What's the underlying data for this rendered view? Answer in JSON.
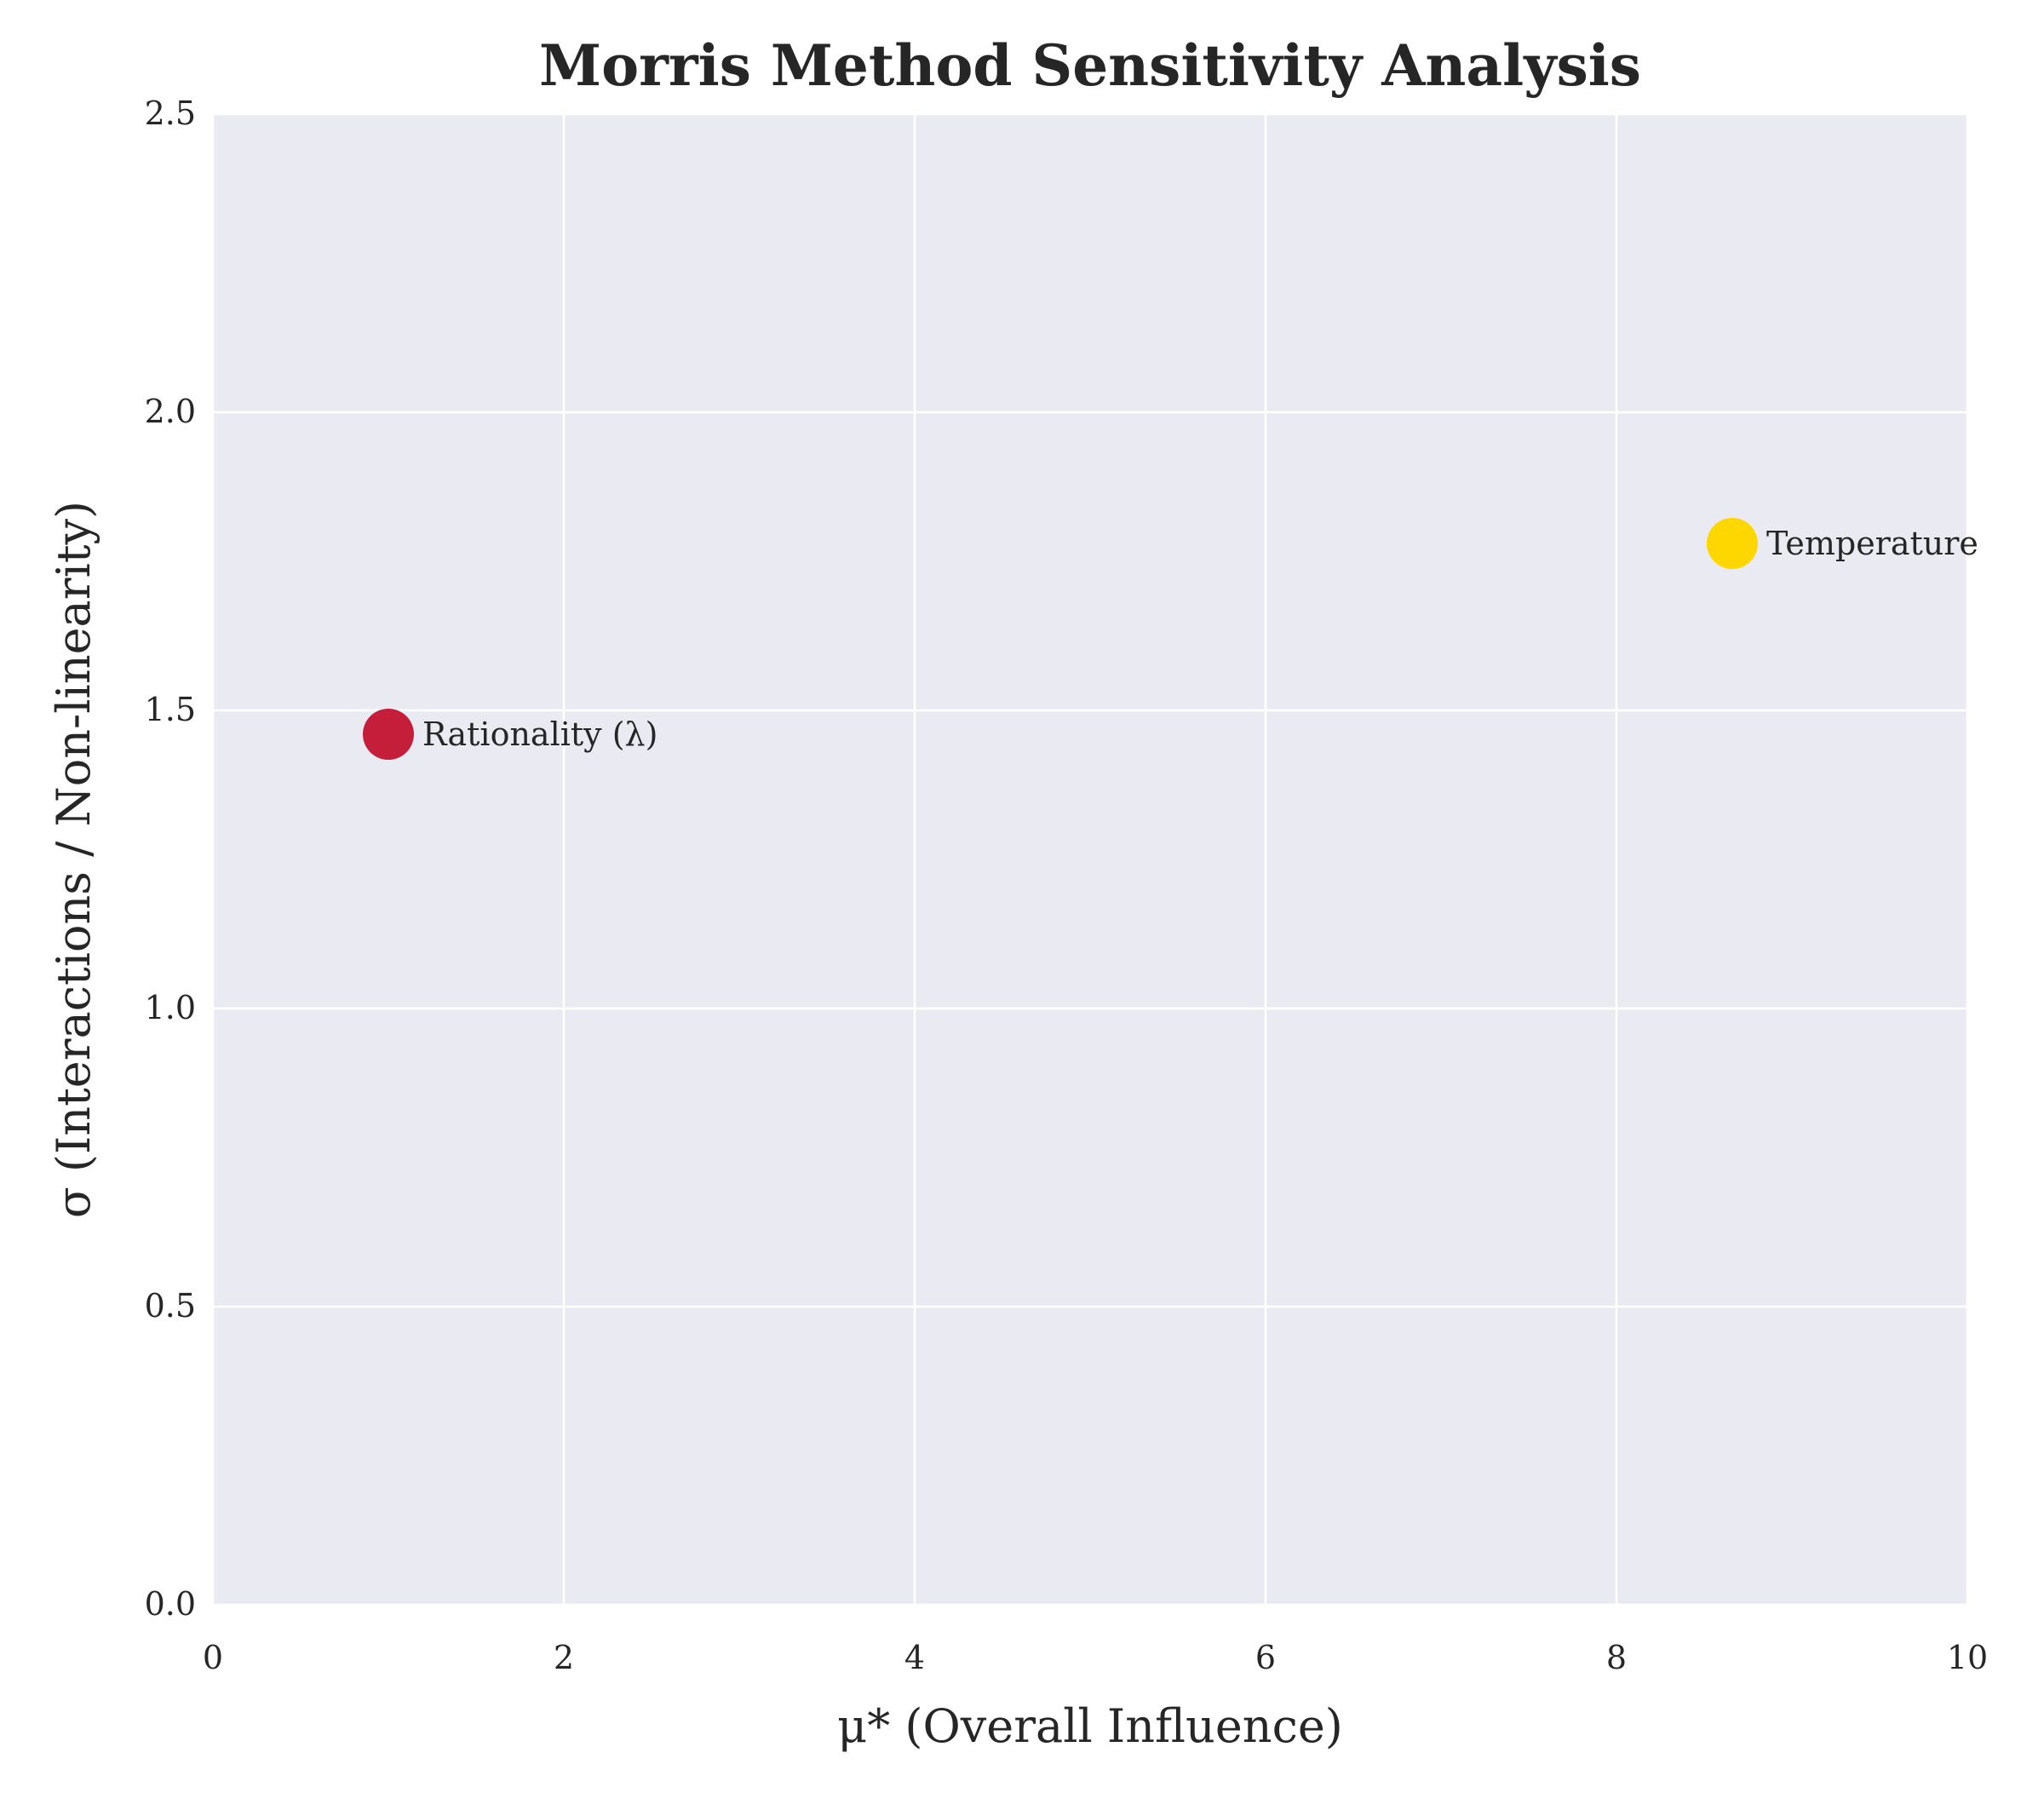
{
  "chart_data": {
    "type": "scatter",
    "title": "Morris Method Sensitivity Analysis",
    "xlabel": "μ* (Overall Influence)",
    "ylabel": "σ (Interactions / Non-linearity)",
    "xlim": [
      0,
      10
    ],
    "ylim": [
      0,
      2.5
    ],
    "x_ticks": [
      0,
      2,
      4,
      6,
      8,
      10
    ],
    "y_ticks": [
      0.0,
      0.5,
      1.0,
      1.5,
      2.0,
      2.5
    ],
    "x_tick_labels": [
      "0",
      "2",
      "4",
      "6",
      "8",
      "10"
    ],
    "y_tick_labels": [
      "0.0",
      "0.5",
      "1.0",
      "1.5",
      "2.0",
      "2.5"
    ],
    "grid": true,
    "background_color": "#eaeaf2",
    "points": [
      {
        "label": "Rationality (λ)",
        "x": 1.0,
        "y": 1.46,
        "color": "#c41e3a"
      },
      {
        "label": "Temperature",
        "x": 8.66,
        "y": 1.78,
        "color": "#ffd700"
      }
    ]
  }
}
